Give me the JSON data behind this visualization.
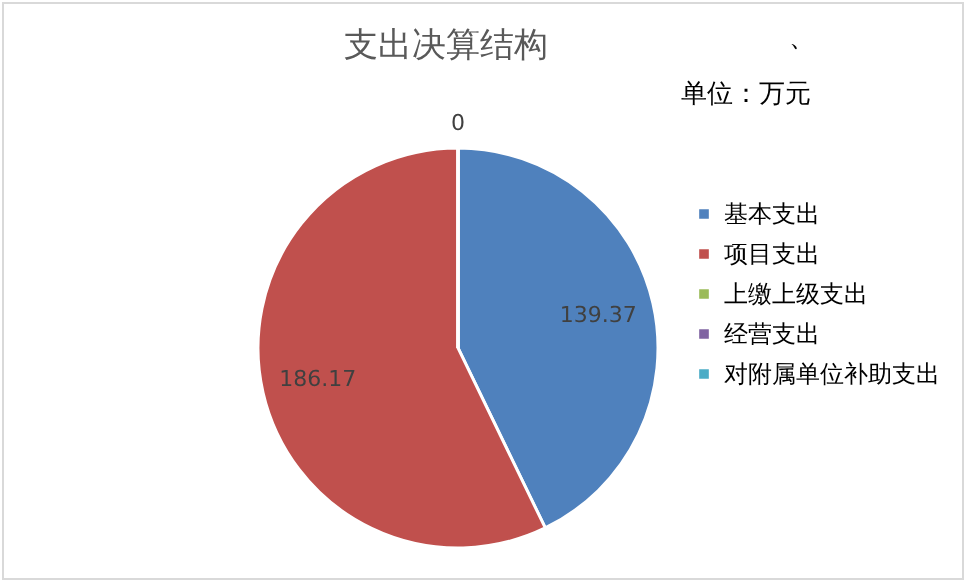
{
  "chart_data": {
    "type": "pie",
    "title": "支出决算结构",
    "subtitle": "单位：万元",
    "annotations": [
      "、"
    ],
    "categories": [
      "基本支出",
      "项目支出",
      "上缴上级支出",
      "经营支出",
      "对附属单位补助支出"
    ],
    "values": [
      139.37,
      186.17,
      0,
      0,
      0
    ],
    "colors": [
      "#4f81bd",
      "#c0504d",
      "#9bbb59",
      "#8064a2",
      "#4bacc6"
    ],
    "value_labels": [
      "139.37",
      "186.17",
      "0",
      null,
      null
    ],
    "legend": "right"
  }
}
